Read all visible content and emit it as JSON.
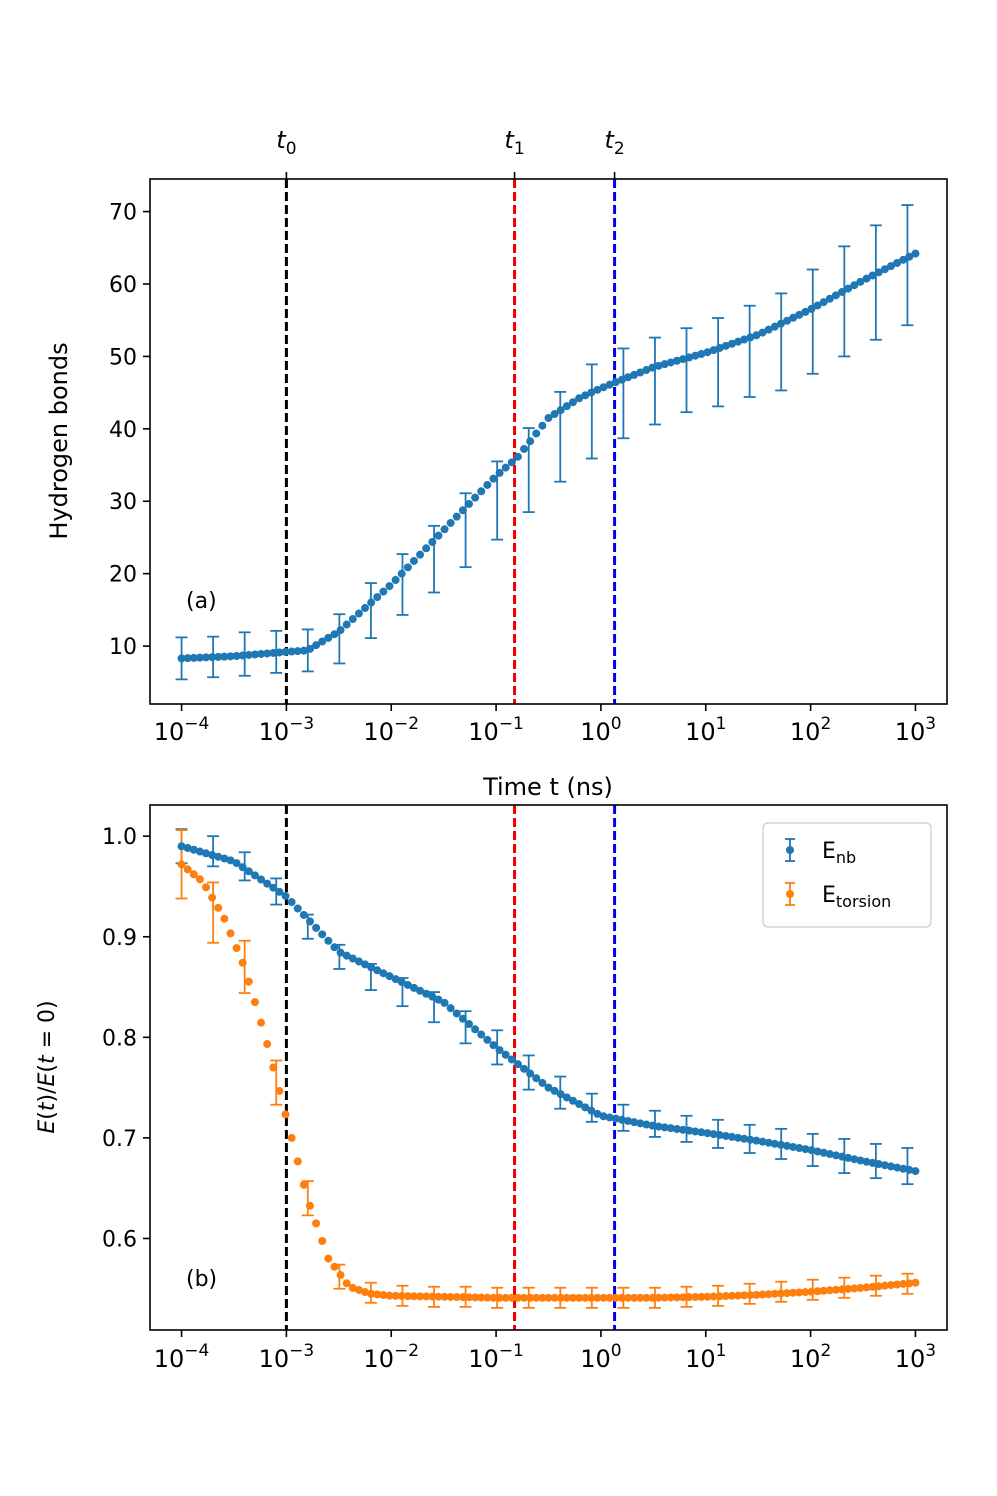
{
  "colors": {
    "blue": "#1f77b4",
    "orange": "#ff7f0e",
    "t0_line": "#000000",
    "t1_line": "#ee0000",
    "t2_line": "#0000ee"
  },
  "chart_data": [
    {
      "type": "scatter",
      "panel_label": "(a)",
      "xscale": "log",
      "xlim": [
        5e-05,
        2000
      ],
      "ylim": [
        2,
        74.5
      ],
      "xlabel": "Time t (ns)",
      "ylabel": "Hydrogen bonds",
      "xtick_values": [
        0.0001,
        0.001,
        0.01,
        0.1,
        1,
        10,
        100,
        1000
      ],
      "xtick_labels": [
        {
          "base": "10",
          "exp": "−4"
        },
        {
          "base": "10",
          "exp": "−3"
        },
        {
          "base": "10",
          "exp": "−2"
        },
        {
          "base": "10",
          "exp": "−1"
        },
        {
          "base": "10",
          "exp": "0"
        },
        {
          "base": "10",
          "exp": "1"
        },
        {
          "base": "10",
          "exp": "2"
        },
        {
          "base": "10",
          "exp": "3"
        }
      ],
      "ytick_values": [
        10,
        20,
        30,
        40,
        50,
        60,
        70
      ],
      "ytick_labels": [
        "10",
        "20",
        "30",
        "40",
        "50",
        "60",
        "70"
      ],
      "vlines": [
        {
          "x": 0.001,
          "label_base": "t",
          "label_sub": "0",
          "color": "#000000"
        },
        {
          "x": 0.15,
          "label_base": "t",
          "label_sub": "1",
          "color": "#ee0000"
        },
        {
          "x": 1.35,
          "label_base": "t",
          "label_sub": "2",
          "color": "#0000ee"
        }
      ],
      "series": [
        {
          "name": "Hydrogen bonds",
          "color": "#1f77b4",
          "curve_logx": [
            -4,
            -3.5,
            -3,
            -2.8,
            -2.5,
            -2,
            -1.5,
            -1,
            -0.8,
            -0.5,
            -0.2,
            0,
            0.15,
            0.5,
            1,
            1.5,
            2,
            2.5,
            3
          ],
          "curve_y": [
            8.3,
            8.6,
            9.2,
            9.4,
            12.0,
            18.5,
            26.0,
            33.5,
            36.0,
            41.5,
            44.3,
            45.6,
            46.5,
            48.5,
            50.5,
            53.0,
            56.5,
            60.5,
            64.2
          ],
          "errorbars": {
            "x": [
              0.0001,
              0.0002,
              0.0004,
              0.0008,
              0.0016,
              0.0032,
              0.0064,
              0.0128,
              0.0256,
              0.0512,
              0.1024,
              0.2048,
              0.4096,
              0.8192,
              1.6384,
              3.2768,
              6.5536,
              13.1072,
              26.2144,
              52.4288,
              104.8576,
              209.7152,
              419.4304,
              838.8608
            ],
            "y": [
              8.3,
              8.5,
              8.9,
              9.2,
              9.4,
              11.0,
              14.9,
              18.5,
              22.0,
              26.0,
              30.1,
              34.3,
              38.9,
              42.4,
              44.9,
              46.6,
              48.1,
              49.2,
              50.7,
              52.0,
              54.8,
              57.6,
              60.2,
              62.6
            ],
            "err": [
              2.9,
              2.8,
              3.0,
              2.9,
              2.9,
              3.4,
              3.8,
              4.2,
              4.6,
              5.1,
              5.4,
              5.8,
              6.2,
              6.5,
              6.2,
              6.0,
              5.8,
              6.1,
              6.3,
              6.7,
              7.2,
              7.6,
              7.9,
              8.3
            ]
          }
        }
      ]
    },
    {
      "type": "scatter",
      "panel_label": "(b)",
      "xscale": "log",
      "xlim": [
        5e-05,
        2000
      ],
      "ylim": [
        0.509,
        1.031
      ],
      "xlabel": "",
      "ylabel": "E(t)/E(t = 0)",
      "ylabel_parts": {
        "E1": "E",
        "t1": "t",
        "E2": "E",
        "t2": "t",
        "eq": " = 0)"
      },
      "xtick_values": [
        0.0001,
        0.001,
        0.01,
        0.1,
        1,
        10,
        100,
        1000
      ],
      "xtick_labels": [
        {
          "base": "10",
          "exp": "−4"
        },
        {
          "base": "10",
          "exp": "−3"
        },
        {
          "base": "10",
          "exp": "−2"
        },
        {
          "base": "10",
          "exp": "−1"
        },
        {
          "base": "10",
          "exp": "0"
        },
        {
          "base": "10",
          "exp": "1"
        },
        {
          "base": "10",
          "exp": "2"
        },
        {
          "base": "10",
          "exp": "3"
        }
      ],
      "ytick_values": [
        0.6,
        0.7,
        0.8,
        0.9,
        1.0
      ],
      "ytick_labels": [
        "0.6",
        "0.7",
        "0.8",
        "0.9",
        "1.0"
      ],
      "vlines": [
        {
          "x": 0.001,
          "color": "#000000"
        },
        {
          "x": 0.15,
          "color": "#ee0000"
        },
        {
          "x": 1.35,
          "color": "#0000ee"
        }
      ],
      "legend": {
        "position": "upper right",
        "entries": [
          {
            "base": "E",
            "sub": "nb",
            "color": "#1f77b4"
          },
          {
            "base": "E",
            "sub": "torsion",
            "color": "#ff7f0e"
          }
        ]
      },
      "series": [
        {
          "name": "E_nb",
          "color": "#1f77b4",
          "curve_logx": [
            -4,
            -3.5,
            -3,
            -2.5,
            -2,
            -1.5,
            -1,
            -0.5,
            0,
            0.5,
            1,
            1.5,
            2,
            2.5,
            3
          ],
          "curve_y": [
            0.99,
            0.975,
            0.94,
            0.885,
            0.86,
            0.835,
            0.79,
            0.75,
            0.722,
            0.712,
            0.705,
            0.697,
            0.688,
            0.677,
            0.667
          ],
          "errorbars": {
            "x": [
              0.0001,
              0.0002,
              0.0004,
              0.0008,
              0.0016,
              0.0032,
              0.0064,
              0.0128,
              0.0256,
              0.0512,
              0.1024,
              0.2048,
              0.4096,
              0.8192,
              1.6384,
              3.2768,
              6.5536,
              13.1072,
              26.2144,
              52.4288,
              104.8576,
              209.7152,
              419.4304,
              838.8608
            ],
            "y": [
              0.99,
              0.985,
              0.97,
              0.945,
              0.91,
              0.88,
              0.86,
              0.845,
              0.83,
              0.81,
              0.79,
              0.765,
              0.745,
              0.73,
              0.72,
              0.714,
              0.709,
              0.704,
              0.699,
              0.694,
              0.688,
              0.682,
              0.677,
              0.672
            ],
            "err": [
              0.017,
              0.015,
              0.014,
              0.013,
              0.012,
              0.012,
              0.013,
              0.014,
              0.015,
              0.016,
              0.017,
              0.017,
              0.016,
              0.014,
              0.013,
              0.013,
              0.013,
              0.014,
              0.014,
              0.015,
              0.016,
              0.017,
              0.017,
              0.018
            ]
          }
        },
        {
          "name": "E_torsion",
          "color": "#ff7f0e",
          "curve_logx": [
            -4,
            -3.8,
            -3.6,
            -3.4,
            -3.2,
            -3,
            -2.8,
            -2.6,
            -2.4,
            -2.2,
            -2,
            -1.5,
            -1,
            -0.5,
            0,
            0.5,
            1,
            1.5,
            2,
            2.5,
            3
          ],
          "curve_y": [
            0.972,
            0.955,
            0.92,
            0.87,
            0.8,
            0.72,
            0.64,
            0.58,
            0.552,
            0.545,
            0.543,
            0.542,
            0.541,
            0.541,
            0.541,
            0.541,
            0.542,
            0.544,
            0.547,
            0.551,
            0.556
          ],
          "errorbars": {
            "x": [
              0.0001,
              0.0002,
              0.0004,
              0.0008,
              0.0016,
              0.0032,
              0.0064,
              0.0128,
              0.0256,
              0.0512,
              0.1024,
              0.2048,
              0.4096,
              0.8192,
              1.6384,
              3.2768,
              6.5536,
              13.1072,
              26.2144,
              52.4288,
              104.8576,
              209.7152,
              419.4304,
              838.8608
            ],
            "y": [
              0.972,
              0.924,
              0.87,
              0.755,
              0.64,
              0.562,
              0.546,
              0.543,
              0.542,
              0.542,
              0.541,
              0.541,
              0.541,
              0.541,
              0.541,
              0.541,
              0.542,
              0.543,
              0.545,
              0.547,
              0.549,
              0.551,
              0.553,
              0.555
            ],
            "err": [
              0.034,
              0.03,
              0.026,
              0.022,
              0.017,
              0.012,
              0.01,
              0.01,
              0.01,
              0.01,
              0.01,
              0.01,
              0.01,
              0.01,
              0.01,
              0.01,
              0.01,
              0.01,
              0.01,
              0.01,
              0.01,
              0.01,
              0.01,
              0.01
            ]
          }
        }
      ]
    }
  ]
}
